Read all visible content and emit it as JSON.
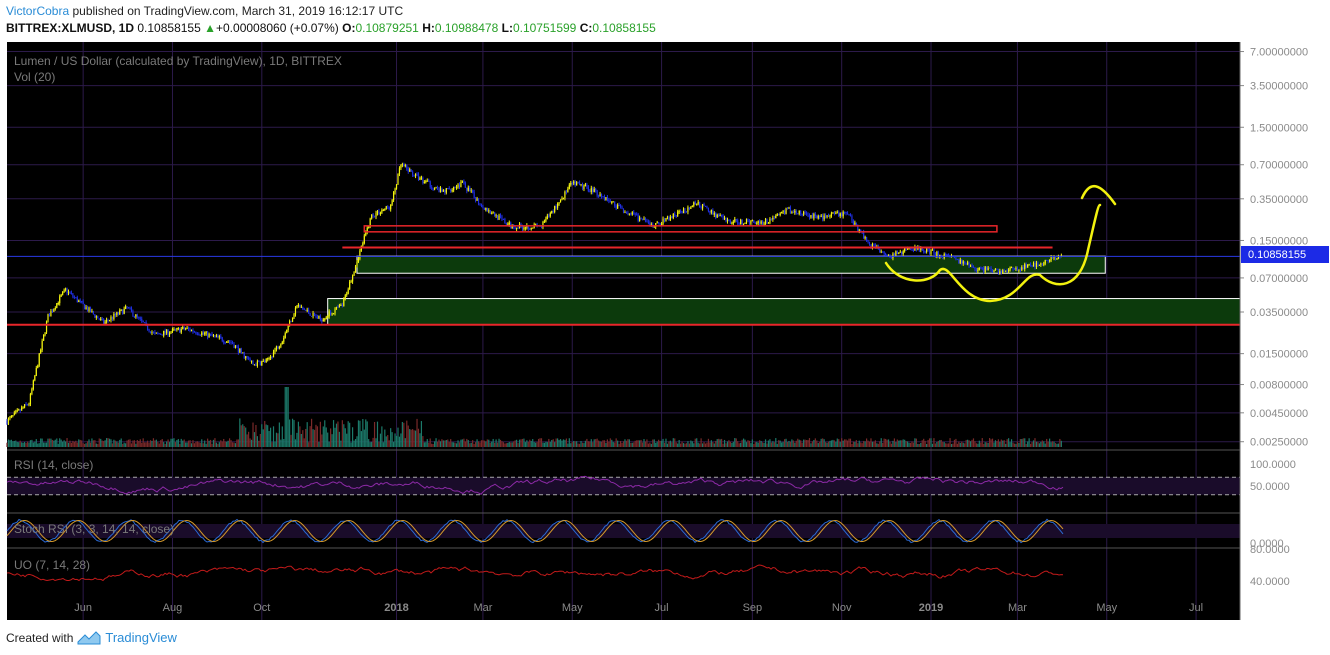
{
  "header": {
    "author": "VictorCobra",
    "published_text": "published on TradingView.com, March 31, 2019 16:12:17 UTC",
    "symbol": "BITTREX:XLMUSD, 1D",
    "last": "0.10858155",
    "change": "+0.00008060 (+0.07%)",
    "o_label": "O:",
    "o_value": "0.10879251",
    "h_label": "H:",
    "h_value": "0.10988478",
    "l_label": "L:",
    "l_value": "0.10751599",
    "c_label": "C:",
    "c_value": "0.10858155"
  },
  "pane_title": "Lumen / US Dollar (calculated by TradingView), 1D, BITTREX",
  "vol_label": "Vol (20)",
  "price_tag": "0.10858155",
  "rsi_label": "RSI (14, close)",
  "stoch_label": "Stoch RSI (3, 3, 14, 14, close)",
  "uo_label": "UO (7, 14, 28)",
  "footer": {
    "created_with": "Created with",
    "brand": "TradingView"
  },
  "colors": {
    "background": "#000000",
    "grid": "#2c1a4a",
    "bull_candle": "#f5f50f",
    "bear_candle": "#1f2fe0",
    "resistance": "#e8262a",
    "zone_fill": "#0c3a0c",
    "zone_border": "#ffffff",
    "drawing": "#f2f20e",
    "rsi": "#8c2aa6",
    "stoch_k": "#2a6ad6",
    "stoch_d": "#d69a2a",
    "uo": "#c21a1a",
    "volume": "#1c7a6a"
  },
  "chart_data": {
    "type": "candlestick",
    "x_axis": {
      "tick_labels": [
        "Jun",
        "Aug",
        "Oct",
        "2018",
        "Mar",
        "May",
        "Jul",
        "Sep",
        "Nov",
        "2019",
        "Mar",
        "May",
        "Jul"
      ]
    },
    "y_axis": {
      "scale": "log",
      "tick_labels": [
        "7.00000000",
        "3.50000000",
        "1.50000000",
        "0.70000000",
        "0.35000000",
        "0.15000000",
        "0.07000000",
        "0.03500000",
        "0.01500000",
        "0.00800000",
        "0.00450000",
        "0.00250000"
      ],
      "ylim": [
        0.0022,
        8.5
      ]
    },
    "last_price": 0.10858155,
    "price_path": [
      [
        "2017-04-10",
        0.0038
      ],
      [
        "2017-04-25",
        0.0055
      ],
      [
        "2017-05-08",
        0.032
      ],
      [
        "2017-05-20",
        0.055
      ],
      [
        "2017-06-01",
        0.04
      ],
      [
        "2017-06-15",
        0.028
      ],
      [
        "2017-07-01",
        0.038
      ],
      [
        "2017-07-20",
        0.022
      ],
      [
        "2017-08-10",
        0.025
      ],
      [
        "2017-08-25",
        0.022
      ],
      [
        "2017-09-10",
        0.019
      ],
      [
        "2017-09-25",
        0.012
      ],
      [
        "2017-10-05",
        0.013
      ],
      [
        "2017-10-15",
        0.02
      ],
      [
        "2017-10-25",
        0.04
      ],
      [
        "2017-11-10",
        0.03
      ],
      [
        "2017-11-25",
        0.04
      ],
      [
        "2017-12-05",
        0.1
      ],
      [
        "2017-12-15",
        0.25
      ],
      [
        "2017-12-28",
        0.3
      ],
      [
        "2018-01-04",
        0.7
      ],
      [
        "2018-01-15",
        0.55
      ],
      [
        "2018-02-01",
        0.4
      ],
      [
        "2018-02-15",
        0.48
      ],
      [
        "2018-03-01",
        0.3
      ],
      [
        "2018-03-20",
        0.2
      ],
      [
        "2018-04-10",
        0.2
      ],
      [
        "2018-05-01",
        0.48
      ],
      [
        "2018-05-15",
        0.42
      ],
      [
        "2018-06-01",
        0.3
      ],
      [
        "2018-06-25",
        0.2
      ],
      [
        "2018-07-10",
        0.25
      ],
      [
        "2018-07-25",
        0.32
      ],
      [
        "2018-08-15",
        0.22
      ],
      [
        "2018-09-10",
        0.22
      ],
      [
        "2018-09-25",
        0.28
      ],
      [
        "2018-10-15",
        0.24
      ],
      [
        "2018-11-05",
        0.26
      ],
      [
        "2018-11-20",
        0.14
      ],
      [
        "2018-12-05",
        0.11
      ],
      [
        "2018-12-20",
        0.13
      ],
      [
        "2019-01-10",
        0.11
      ],
      [
        "2019-02-01",
        0.085
      ],
      [
        "2019-02-20",
        0.08
      ],
      [
        "2019-03-10",
        0.09
      ],
      [
        "2019-03-31",
        0.10858155
      ]
    ],
    "resistance_levels": [
      {
        "price": 0.027,
        "from": "2017-04-10",
        "to": "2019-07-31"
      },
      {
        "price": 0.13,
        "from": "2017-11-25",
        "to": "2019-03-25"
      },
      {
        "price": 0.19,
        "from": "2017-12-10",
        "to": "2019-02-15"
      }
    ],
    "support_zones": [
      {
        "low": 0.077,
        "high": 0.109,
        "from": "2017-12-05",
        "to": "2019-04-30"
      },
      {
        "low": 0.027,
        "high": 0.046,
        "from": "2017-11-15",
        "to": "2019-07-31"
      }
    ],
    "rsi": {
      "upper_band": 70,
      "lower_band": 30,
      "tick_labels": [
        "100.0000",
        "50.0000"
      ]
    },
    "stoch_rsi": {
      "tick_labels": [
        "0.0000"
      ]
    },
    "uo": {
      "tick_labels": [
        "80.0000",
        "40.0000"
      ]
    }
  }
}
